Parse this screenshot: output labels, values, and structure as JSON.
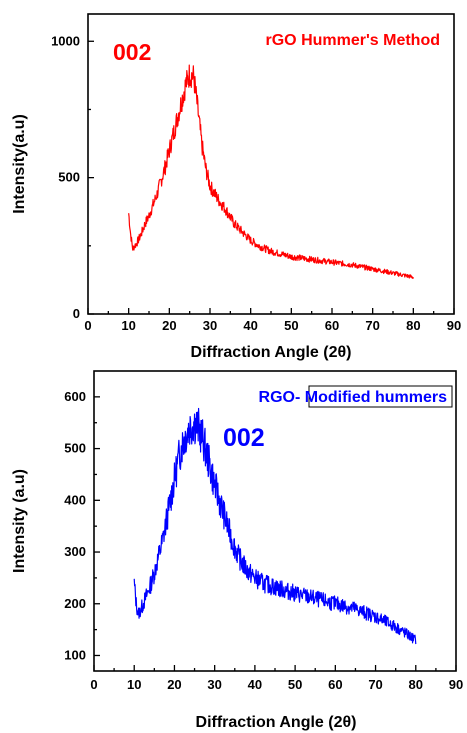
{
  "chart_data": [
    {
      "type": "line",
      "title": "rGO Hummer's Method",
      "annotation": "002",
      "xlabel": "Diffraction Angle (2θ)",
      "ylabel": "Intensity(a.u)",
      "xlim": [
        0,
        90
      ],
      "ylim": [
        0,
        1100
      ],
      "xticks": [
        0,
        10,
        20,
        30,
        40,
        50,
        60,
        70,
        80,
        90
      ],
      "yticks": [
        0,
        500,
        1000
      ],
      "color": "#ff0000",
      "grid": false,
      "series": [
        {
          "x": [
            10,
            10.5,
            11,
            12,
            13,
            14,
            15,
            16,
            17,
            18,
            19,
            20,
            21,
            22,
            23,
            24,
            25,
            26,
            27,
            28,
            29,
            30,
            32,
            34,
            36,
            38,
            40,
            42,
            45,
            50,
            55,
            60,
            65,
            70,
            75,
            80
          ],
          "y": [
            370,
            290,
            240,
            260,
            290,
            330,
            360,
            400,
            440,
            490,
            540,
            600,
            660,
            720,
            780,
            840,
            880,
            870,
            750,
            620,
            530,
            470,
            420,
            380,
            330,
            300,
            270,
            250,
            230,
            210,
            200,
            190,
            180,
            165,
            150,
            135
          ]
        }
      ]
    },
    {
      "type": "line",
      "title": "RGO- Modified hummers",
      "annotation": "002",
      "xlabel": "Diffraction Angle (2θ)",
      "ylabel": "Intensity (a.u)",
      "xlim": [
        0,
        90
      ],
      "ylim": [
        70,
        650
      ],
      "xticks": [
        0,
        10,
        20,
        30,
        40,
        50,
        60,
        70,
        80,
        90
      ],
      "yticks": [
        100,
        200,
        300,
        400,
        500,
        600
      ],
      "color": "#0000ff",
      "legend": "top-right",
      "grid": false,
      "series": [
        {
          "name": "RGO- Modified hummers",
          "x": [
            10,
            10.5,
            11,
            12,
            13,
            14,
            15,
            16,
            17,
            18,
            19,
            20,
            21,
            22,
            23,
            24,
            25,
            26,
            27,
            28,
            29,
            30,
            32,
            34,
            36,
            38,
            40,
            42,
            45,
            50,
            55,
            60,
            65,
            70,
            75,
            80
          ],
          "y": [
            240,
            200,
            180,
            195,
            215,
            235,
            260,
            290,
            320,
            360,
            400,
            440,
            480,
            510,
            530,
            545,
            550,
            540,
            520,
            490,
            460,
            430,
            380,
            330,
            290,
            265,
            250,
            240,
            232,
            220,
            210,
            200,
            190,
            175,
            155,
            130
          ]
        }
      ]
    }
  ]
}
